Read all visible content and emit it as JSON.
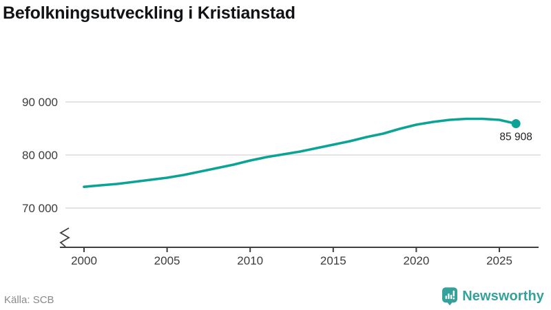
{
  "title": "Befolkningsutveckling i Kristianstad",
  "source": {
    "label": "Källa: SCB"
  },
  "branding": {
    "name": "Newsworthy",
    "icon": "newsworthy-bubble-barchart-icon"
  },
  "colors": {
    "line": "#0ba396",
    "logo_teal": "#35a19b",
    "grid": "#dcdcdc",
    "axis": "#3f3f3f",
    "tick_text": "#3c3c3c",
    "end_label_text": "#1f1f1f"
  },
  "chart_data": {
    "type": "line",
    "title": "Befolkningsutveckling i Kristianstad",
    "xlabel": "",
    "ylabel": "",
    "x": [
      2000,
      2001,
      2002,
      2003,
      2004,
      2005,
      2006,
      2007,
      2008,
      2009,
      2010,
      2011,
      2012,
      2013,
      2014,
      2015,
      2016,
      2017,
      2018,
      2019,
      2020,
      2021,
      2022,
      2023,
      2024,
      2025,
      2026
    ],
    "values": [
      74000,
      74290,
      74550,
      74930,
      75320,
      75710,
      76230,
      76880,
      77530,
      78180,
      78960,
      79610,
      80130,
      80650,
      81300,
      81950,
      82600,
      83380,
      84030,
      84940,
      85710,
      86230,
      86620,
      86820,
      86820,
      86620,
      85908
    ],
    "last_point_label": "85 908",
    "xticks": [
      2000,
      2005,
      2010,
      2015,
      2020,
      2025
    ],
    "xtick_labels": [
      "2000",
      "2005",
      "2010",
      "2015",
      "2020",
      "2025"
    ],
    "yticks": [
      90000,
      80000,
      70000
    ],
    "ytick_labels": [
      "90 000",
      "80 000",
      "70 000"
    ],
    "ylim": [
      68000,
      93000
    ],
    "xlim": [
      2000,
      2027
    ],
    "grid": "horizontal",
    "axis_break": true,
    "legend": "none"
  }
}
